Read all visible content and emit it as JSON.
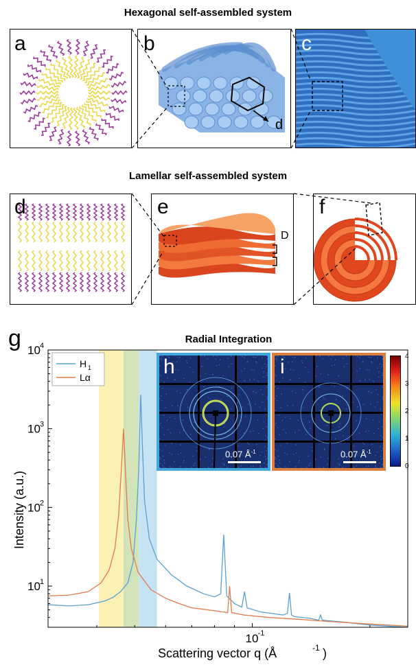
{
  "section_titles": {
    "hexagonal": "Hexagonal self-assembled system",
    "lamellar": "Lamellar self-assembled system"
  },
  "panel_labels": {
    "a": "a",
    "b": "b",
    "c": "c",
    "d": "d",
    "e": "e",
    "f": "f",
    "g": "g",
    "h": "h",
    "i": "i"
  },
  "annotations": {
    "hex_spacing": "d",
    "lamellar_spacing": "D"
  },
  "chart_data": {
    "type": "line",
    "title": "Radial Integration",
    "xlabel": "Scattering vector q (Å",
    "xlabel_exp": "-1",
    "ylabel": "Intensity (a.u.)",
    "x_scale": "log",
    "y_scale": "log",
    "xlim": [
      0.03,
      0.25
    ],
    "ylim": [
      3,
      10000
    ],
    "x_tick_label": "10",
    "x_tick_exp": "-1",
    "y_ticks": [
      {
        "value": 10,
        "base": "10",
        "exp": "1"
      },
      {
        "value": 100,
        "base": "10",
        "exp": "2"
      },
      {
        "value": 1000,
        "base": "10",
        "exp": "3"
      },
      {
        "value": 10000,
        "base": "10",
        "exp": "4"
      }
    ],
    "legend": {
      "placement": "top-left"
    },
    "series": [
      {
        "name": "H",
        "sub": "1",
        "color": "#5aa0d2",
        "x": [
          0.03,
          0.034,
          0.038,
          0.042,
          0.044,
          0.046,
          0.048,
          0.0495,
          0.0505,
          0.0512,
          0.0518,
          0.0524,
          0.053,
          0.0545,
          0.057,
          0.062,
          0.068,
          0.075,
          0.08,
          0.083,
          0.0845,
          0.086,
          0.09,
          0.094,
          0.0955,
          0.097,
          0.105,
          0.12,
          0.123,
          0.1245,
          0.126,
          0.128,
          0.14,
          0.148,
          0.1495,
          0.151,
          0.17,
          0.2,
          0.25
        ],
        "y": [
          5.8,
          5.6,
          5.8,
          6.5,
          7.2,
          8.5,
          11,
          20,
          70,
          300,
          2700,
          500,
          120,
          40,
          22,
          14,
          10,
          8,
          7.3,
          8,
          45,
          7.5,
          6,
          5.4,
          8.5,
          5.3,
          4.7,
          4.3,
          4.5,
          8.2,
          4.3,
          4.1,
          3.9,
          3.7,
          4.3,
          3.7,
          3.5,
          3.2,
          3.0
        ]
      },
      {
        "name": "Lα",
        "sub": "",
        "color": "#e07a4a",
        "x": [
          0.03,
          0.034,
          0.038,
          0.041,
          0.043,
          0.0445,
          0.0455,
          0.0462,
          0.0468,
          0.0474,
          0.048,
          0.049,
          0.051,
          0.055,
          0.06,
          0.065,
          0.07,
          0.077,
          0.084,
          0.0865,
          0.0875,
          0.0885,
          0.095,
          0.11,
          0.13,
          0.15,
          0.2,
          0.25
        ],
        "y": [
          7.5,
          7.7,
          8.5,
          11,
          16,
          30,
          80,
          300,
          1000,
          260,
          70,
          30,
          15,
          9,
          7,
          6,
          5.3,
          5,
          4.7,
          4.6,
          10,
          4.6,
          4.3,
          4.0,
          3.8,
          3.6,
          3.3,
          3.1
        ]
      }
    ],
    "bands": [
      {
        "x0": 0.0405,
        "x1": 0.0468,
        "color": "#fbf1b4"
      },
      {
        "x0": 0.0468,
        "x1": 0.0512,
        "color": "#d2e3b9"
      },
      {
        "x0": 0.0512,
        "x1": 0.057,
        "color": "#c5e3f2"
      }
    ]
  },
  "insets": {
    "h": {
      "border_color": "#42a8dc",
      "scale_bar": "0.07 Å",
      "scale_exp": "-1"
    },
    "i": {
      "border_color": "#dd7f3d",
      "scale_bar": "0.07 Å",
      "scale_exp": "-1"
    }
  },
  "colorbar": {
    "ticks": [
      "4",
      "3",
      "2",
      "1",
      "0"
    ]
  }
}
